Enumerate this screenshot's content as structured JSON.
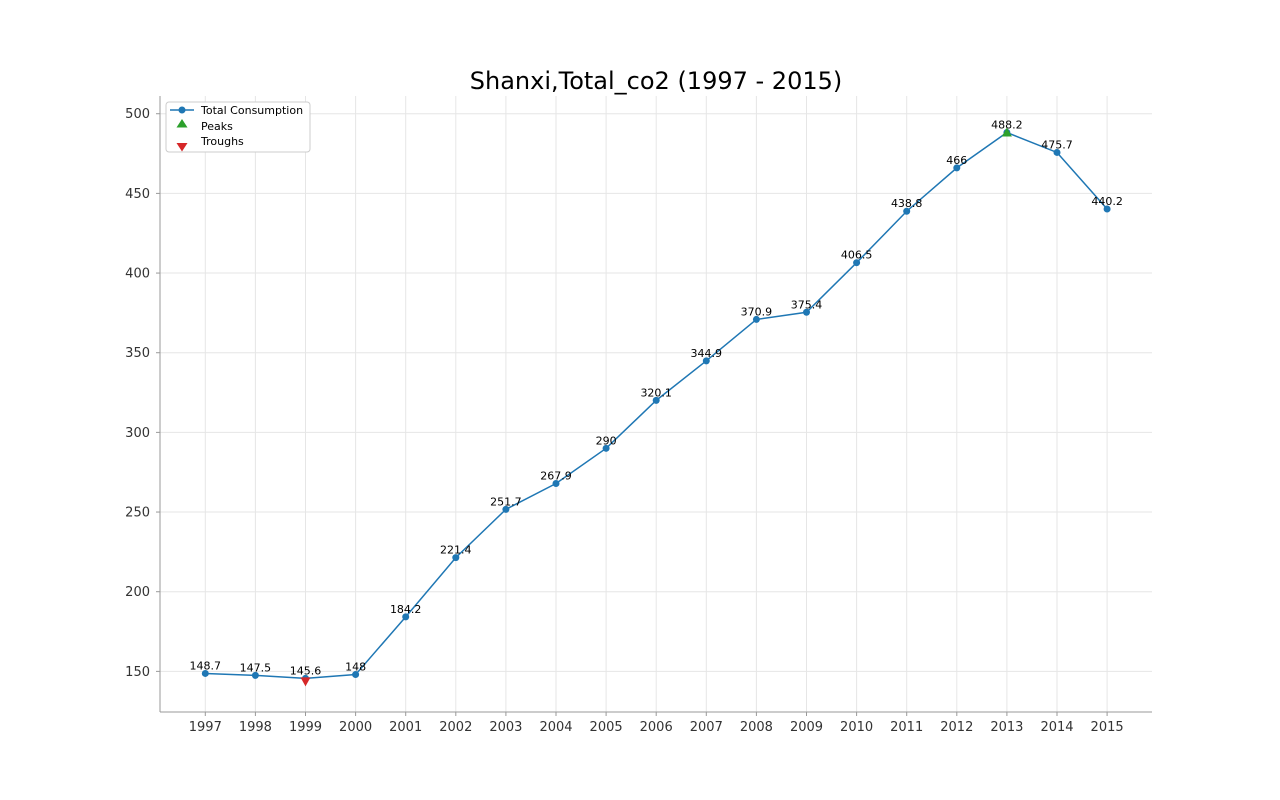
{
  "chart_data": {
    "type": "line",
    "title": "Shanxi,Total_co2 (1997 - 2015)",
    "xlabel": "",
    "ylabel": "",
    "x": [
      "1997",
      "1998",
      "1999",
      "2000",
      "2001",
      "2002",
      "2003",
      "2004",
      "2005",
      "2006",
      "2007",
      "2008",
      "2009",
      "2010",
      "2011",
      "2012",
      "2013",
      "2014",
      "2015"
    ],
    "series": [
      {
        "name": "Total Consumption",
        "values": [
          148.7,
          147.5,
          145.6,
          148,
          184.2,
          221.4,
          251.7,
          267.9,
          290,
          320.1,
          344.9,
          370.9,
          375.4,
          406.5,
          438.8,
          466,
          488.2,
          475.7,
          440.2
        ],
        "data_labels": [
          "148.7",
          "147.5",
          "145.6",
          "148",
          "184.2",
          "221.4",
          "251.7",
          "267.9",
          "290",
          "320.1",
          "344.9",
          "370.9",
          "375.4",
          "406.5",
          "438.8",
          "466",
          "488.2",
          "475.7",
          "440.2"
        ],
        "color": "#1f77b4"
      }
    ],
    "peaks": {
      "name": "Peaks",
      "x": [
        "2013"
      ],
      "values": [
        488.2
      ],
      "color": "#2ca02c"
    },
    "troughs": {
      "name": "Troughs",
      "x": [
        "1999"
      ],
      "values": [
        145.6
      ],
      "color": "#d62728"
    },
    "ylim": [
      124.5,
      510
    ],
    "yticks": [
      "150",
      "200",
      "250",
      "300",
      "350",
      "400",
      "450",
      "500"
    ],
    "ytick_values": [
      150,
      200,
      250,
      300,
      350,
      400,
      450,
      500
    ],
    "grid": true,
    "legend_position": "top-left"
  }
}
